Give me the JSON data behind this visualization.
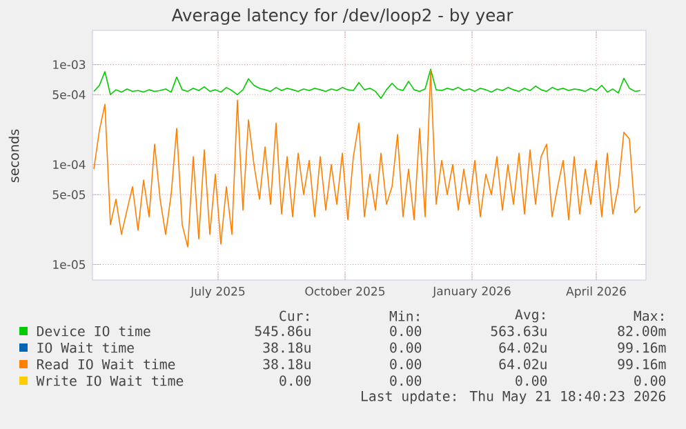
{
  "chart_data": {
    "type": "line",
    "title": "Average latency for /dev/loop2 - by year",
    "ylabel": "seconds",
    "log": "y",
    "grid": true,
    "legend": "bottom",
    "xlim": [
      "2025-04-15",
      "2026-05-21"
    ],
    "xticks": [
      {
        "value": "2025-07-15",
        "label": "July 2025"
      },
      {
        "value": "2025-10-15",
        "label": "October 2025"
      },
      {
        "value": "2026-01-15",
        "label": "January 2026"
      },
      {
        "value": "2026-04-15",
        "label": "April 2026"
      }
    ],
    "ylim": [
      7e-06,
      0.0022
    ],
    "yticks": [
      {
        "value": 1e-05,
        "label": "1e-05"
      },
      {
        "value": 5e-05,
        "label": "5e-05"
      },
      {
        "value": 0.0001,
        "label": "1e-04"
      },
      {
        "value": 0.0005,
        "label": "5e-04"
      },
      {
        "value": 0.001,
        "label": "1e-03"
      }
    ],
    "x": [
      "2025-04-16",
      "2025-04-20",
      "2025-04-24",
      "2025-04-28",
      "2025-05-02",
      "2025-05-06",
      "2025-05-10",
      "2025-05-14",
      "2025-05-18",
      "2025-05-22",
      "2025-05-26",
      "2025-05-30",
      "2025-06-03",
      "2025-06-07",
      "2025-06-11",
      "2025-06-15",
      "2025-06-19",
      "2025-06-23",
      "2025-06-27",
      "2025-07-01",
      "2025-07-05",
      "2025-07-09",
      "2025-07-13",
      "2025-07-17",
      "2025-07-21",
      "2025-07-25",
      "2025-07-29",
      "2025-08-02",
      "2025-08-06",
      "2025-08-10",
      "2025-08-14",
      "2025-08-18",
      "2025-08-22",
      "2025-08-26",
      "2025-08-30",
      "2025-09-03",
      "2025-09-07",
      "2025-09-11",
      "2025-09-15",
      "2025-09-19",
      "2025-09-23",
      "2025-09-27",
      "2025-10-01",
      "2025-10-05",
      "2025-10-09",
      "2025-10-13",
      "2025-10-17",
      "2025-10-21",
      "2025-10-25",
      "2025-10-29",
      "2025-11-02",
      "2025-11-06",
      "2025-11-10",
      "2025-11-14",
      "2025-11-18",
      "2025-11-22",
      "2025-11-26",
      "2025-11-30",
      "2025-12-04",
      "2025-12-08",
      "2025-12-12",
      "2025-12-16",
      "2025-12-20",
      "2025-12-24",
      "2025-12-28",
      "2026-01-01",
      "2026-01-05",
      "2026-01-09",
      "2026-01-13",
      "2026-01-17",
      "2026-01-21",
      "2026-01-25",
      "2026-01-29",
      "2026-02-02",
      "2026-02-06",
      "2026-02-10",
      "2026-02-14",
      "2026-02-18",
      "2026-02-22",
      "2026-02-26",
      "2026-03-02",
      "2026-03-06",
      "2026-03-10",
      "2026-03-14",
      "2026-03-18",
      "2026-03-22",
      "2026-03-26",
      "2026-03-30",
      "2026-04-03",
      "2026-04-07",
      "2026-04-11",
      "2026-04-15",
      "2026-04-19",
      "2026-04-23",
      "2026-04-27",
      "2026-05-01",
      "2026-05-05",
      "2026-05-09",
      "2026-05-13",
      "2026-05-17"
    ],
    "series": [
      {
        "name": "Device IO time",
        "color": "#00cc00",
        "values": [
          0.00054,
          0.00062,
          0.00085,
          0.0005,
          0.00056,
          0.00053,
          0.00057,
          0.00054,
          0.00055,
          0.00053,
          0.00056,
          0.00054,
          0.00055,
          0.00057,
          0.00053,
          0.00075,
          0.00056,
          0.00054,
          0.00058,
          0.00055,
          0.0006,
          0.00054,
          0.00056,
          0.00053,
          0.00059,
          0.00055,
          0.0005,
          0.00056,
          0.00072,
          0.00062,
          0.00058,
          0.00056,
          0.00054,
          0.00059,
          0.00055,
          0.00058,
          0.00056,
          0.00054,
          0.00057,
          0.00055,
          0.00058,
          0.00056,
          0.00054,
          0.00057,
          0.00055,
          0.00059,
          0.00056,
          0.00055,
          0.00066,
          0.00056,
          0.00058,
          0.00054,
          0.00046,
          0.00056,
          0.00065,
          0.00057,
          0.00055,
          0.00068,
          0.00056,
          0.00054,
          0.00057,
          0.0009,
          0.00056,
          0.00055,
          0.00058,
          0.00056,
          0.00059,
          0.00055,
          0.00057,
          0.00054,
          0.00058,
          0.00056,
          0.00053,
          0.00057,
          0.00055,
          0.00059,
          0.00056,
          0.00054,
          0.00058,
          0.00055,
          0.00061,
          0.00056,
          0.00054,
          0.00059,
          0.00056,
          0.00058,
          0.00055,
          0.00057,
          0.00056,
          0.00054,
          0.00058,
          0.00055,
          0.00062,
          0.00053,
          0.00057,
          0.00052,
          0.00073,
          0.00058,
          0.00054,
          0.00055
        ]
      },
      {
        "name": "IO Wait time",
        "color": "#0066b3",
        "values": [
          null,
          null,
          null,
          null,
          null,
          null,
          null,
          null,
          null,
          null,
          null,
          null,
          null,
          null,
          null,
          null,
          null,
          null,
          null,
          null,
          null,
          null,
          null,
          null,
          null,
          null,
          null,
          null,
          null,
          null,
          null,
          null,
          null,
          null,
          null,
          null,
          null,
          null,
          null,
          null,
          null,
          null,
          null,
          null,
          null,
          null,
          null,
          null,
          null,
          null,
          null,
          null,
          null,
          null,
          null,
          null,
          null,
          null,
          null,
          null,
          null,
          null,
          null,
          null,
          null,
          null,
          null,
          null,
          null,
          null,
          null,
          null,
          null,
          null,
          null,
          null,
          null,
          null,
          null,
          null,
          null,
          null,
          null,
          null,
          null,
          null,
          null,
          null,
          null,
          null,
          null,
          null,
          null,
          null,
          null,
          null,
          null,
          null,
          null,
          null
        ]
      },
      {
        "name": "Read IO Wait time",
        "color": "#ff8000",
        "values": [
          9e-05,
          0.00022,
          0.0004,
          2.5e-05,
          4.5e-05,
          2e-05,
          3.5e-05,
          6e-05,
          2.2e-05,
          7e-05,
          3e-05,
          0.00016,
          4.5e-05,
          2e-05,
          5e-05,
          0.00023,
          2.5e-05,
          1.5e-05,
          0.00012,
          1.8e-05,
          0.00014,
          2e-05,
          8e-05,
          1.6e-05,
          6e-05,
          2e-05,
          0.00044,
          3.5e-05,
          0.00028,
          0.0001,
          4.5e-05,
          0.00015,
          4e-05,
          0.00026,
          3.2e-05,
          0.00012,
          3e-05,
          0.00013,
          5e-05,
          0.00011,
          3e-05,
          0.00012,
          3.5e-05,
          0.0001,
          4e-05,
          0.00013,
          2.8e-05,
          0.00012,
          0.00026,
          3e-05,
          8e-05,
          3.5e-05,
          0.00013,
          4e-05,
          6e-05,
          0.0002,
          3e-05,
          9e-05,
          2.8e-05,
          0.00023,
          3e-05,
          0.00088,
          4e-05,
          0.00011,
          5e-05,
          0.0001,
          3.5e-05,
          9e-05,
          4e-05,
          0.00011,
          3e-05,
          8e-05,
          5e-05,
          0.00012,
          3.5e-05,
          0.0001,
          4e-05,
          0.00013,
          3.2e-05,
          0.00014,
          4e-05,
          0.00012,
          0.00016,
          3e-05,
          6e-05,
          0.00011,
          2.8e-05,
          0.00012,
          3.2e-05,
          9e-05,
          4e-05,
          0.00011,
          3e-05,
          0.00013,
          3.2e-05,
          6e-05,
          0.00021,
          0.00018,
          3.3e-05,
          3.8e-05
        ]
      },
      {
        "name": "Write IO Wait time",
        "color": "#ffcc00",
        "values": [
          null,
          null,
          null,
          null,
          null,
          null,
          null,
          null,
          null,
          null,
          null,
          null,
          null,
          null,
          null,
          null,
          null,
          null,
          null,
          null,
          null,
          null,
          null,
          null,
          null,
          null,
          null,
          null,
          null,
          null,
          null,
          null,
          null,
          null,
          null,
          null,
          null,
          null,
          null,
          null,
          null,
          null,
          null,
          null,
          null,
          null,
          null,
          null,
          null,
          null,
          null,
          null,
          null,
          null,
          null,
          null,
          null,
          null,
          null,
          null,
          null,
          null,
          null,
          null,
          null,
          null,
          null,
          null,
          null,
          null,
          null,
          null,
          null,
          null,
          null,
          null,
          null,
          null,
          null,
          null,
          null,
          null,
          null,
          null,
          null,
          null,
          null,
          null,
          null,
          null,
          null,
          null,
          null,
          null,
          null,
          null,
          null,
          null,
          null,
          null
        ]
      }
    ],
    "annotations": [
      "Cur:",
      "Min:",
      "Avg:",
      "Max:",
      "545.86u",
      "0.00",
      "563.63u",
      "82.00m",
      "38.18u",
      "0.00",
      "64.02u",
      "99.16m",
      "38.18u",
      "0.00",
      "64.02u",
      "99.16m",
      "0.00",
      "0.00",
      "0.00",
      "0.00",
      "Last update: Thu May 21 18:40:23 2026"
    ]
  }
}
